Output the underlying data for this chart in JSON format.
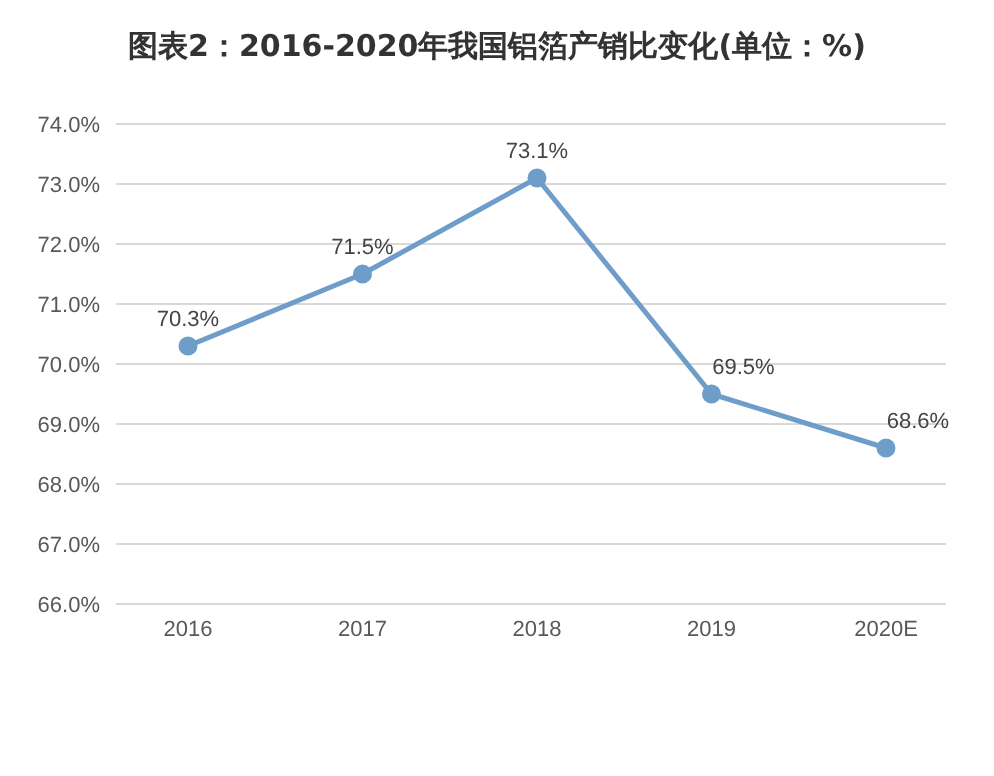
{
  "chart_data": {
    "type": "line",
    "title": "图表2：2016-2020年我国铝箔产销比变化(单位：%)",
    "categories": [
      "2016",
      "2017",
      "2018",
      "2019",
      "2020E"
    ],
    "series": [
      {
        "color": "#6d9dc8",
        "values": [
          70.3,
          71.5,
          73.1,
          69.5,
          68.6
        ],
        "value_labels": [
          "70.3%",
          "71.5%",
          "73.1%",
          "69.5%",
          "68.6%"
        ]
      }
    ],
    "ylim": [
      66,
      74
    ],
    "yticks": [
      {
        "value": 66,
        "label": "66.0%"
      },
      {
        "value": 67,
        "label": "67.0%"
      },
      {
        "value": 68,
        "label": "68.0%"
      },
      {
        "value": 69,
        "label": "69.0%"
      },
      {
        "value": 70,
        "label": "70.0%"
      },
      {
        "value": 71,
        "label": "71.0%"
      },
      {
        "value": 72,
        "label": "72.0%"
      },
      {
        "value": 73,
        "label": "73.0%"
      },
      {
        "value": 74,
        "label": "74.0%"
      }
    ],
    "grid": "y",
    "marker": "circle",
    "line_style": "solid",
    "legend": false
  }
}
